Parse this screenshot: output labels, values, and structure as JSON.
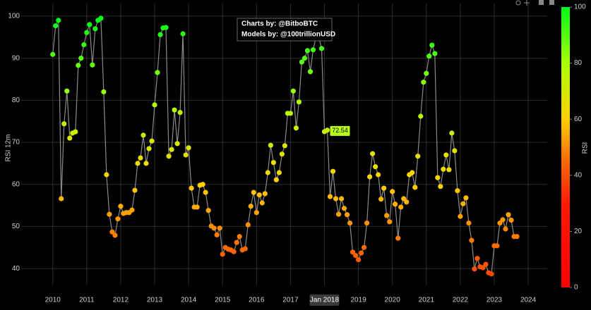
{
  "chart_data": {
    "type": "scatter",
    "y_label": "RSI 12m",
    "annotations": [
      "Charts by: @BitboBTC",
      "Models by: @100trillionUSD"
    ],
    "hover_label": "Jan 2018",
    "x": [
      2010,
      2010.083,
      2010.167,
      2010.25,
      2010.333,
      2010.417,
      2010.5,
      2010.583,
      2010.667,
      2010.75,
      2010.833,
      2010.917,
      2011,
      2011.083,
      2011.167,
      2011.25,
      2011.333,
      2011.417,
      2011.5,
      2011.583,
      2011.667,
      2011.75,
      2011.833,
      2011.917,
      2012,
      2012.083,
      2012.167,
      2012.25,
      2012.333,
      2012.417,
      2012.5,
      2012.583,
      2012.667,
      2012.75,
      2012.833,
      2012.917,
      2013,
      2013.083,
      2013.167,
      2013.25,
      2013.333,
      2013.417,
      2013.5,
      2013.583,
      2013.667,
      2013.75,
      2013.833,
      2013.917,
      2014,
      2014.083,
      2014.167,
      2014.25,
      2014.333,
      2014.417,
      2014.5,
      2014.583,
      2014.667,
      2014.75,
      2014.833,
      2014.917,
      2015,
      2015.083,
      2015.167,
      2015.25,
      2015.333,
      2015.417,
      2015.5,
      2015.583,
      2015.667,
      2015.75,
      2015.833,
      2015.917,
      2016,
      2016.083,
      2016.167,
      2016.25,
      2016.333,
      2016.417,
      2016.5,
      2016.583,
      2016.667,
      2016.75,
      2016.833,
      2016.917,
      2017,
      2017.083,
      2017.167,
      2017.25,
      2017.333,
      2017.417,
      2017.5,
      2017.583,
      2017.667,
      2017.75,
      2017.833,
      2017.917,
      2018,
      2018.083,
      2018.167,
      2018.25,
      2018.333,
      2018.417,
      2018.5,
      2018.583,
      2018.667,
      2018.75,
      2018.833,
      2018.917,
      2019,
      2019.083,
      2019.167,
      2019.25,
      2019.333,
      2019.417,
      2019.5,
      2019.583,
      2019.667,
      2019.75,
      2019.833,
      2019.917,
      2020,
      2020.083,
      2020.167,
      2020.25,
      2020.333,
      2020.417,
      2020.5,
      2020.583,
      2020.667,
      2020.75,
      2020.833,
      2020.917,
      2021,
      2021.083,
      2021.167,
      2021.25,
      2021.333,
      2021.417,
      2021.5,
      2021.583,
      2021.667,
      2021.75,
      2021.833,
      2021.917,
      2022,
      2022.083,
      2022.167,
      2022.25,
      2022.333,
      2022.417,
      2022.5,
      2022.583,
      2022.667,
      2022.75,
      2022.833,
      2022.917,
      2023,
      2023.083,
      2023.167,
      2023.25,
      2023.333,
      2023.417,
      2023.5,
      2023.583,
      2023.667
    ],
    "values": [
      90.9,
      97.7,
      99,
      56.6,
      74.4,
      82.2,
      71,
      72.2,
      72.5,
      88.3,
      90,
      93.2,
      96.1,
      98,
      88.4,
      97,
      99,
      99.5,
      82,
      62.3,
      52.9,
      48.7,
      47.9,
      51.8,
      54.8,
      53.1,
      53.3,
      53.3,
      53.9,
      58.6,
      65,
      66.3,
      71.7,
      65,
      68.5,
      70.3,
      78.9,
      86.6,
      95.6,
      97.2,
      97.3,
      66.7,
      68.3,
      77.7,
      69.7,
      77.1,
      95.8,
      67,
      68.7,
      59.1,
      54.6,
      54.6,
      59.8,
      60,
      58.1,
      53.8,
      50.1,
      49.6,
      48,
      49.6,
      43.4,
      45,
      44.6,
      44.4,
      44,
      46.2,
      47.6,
      44.4,
      44.7,
      50.4,
      54.8,
      58.1,
      53.3,
      57.5,
      55.6,
      57.8,
      62.8,
      69.3,
      65.2,
      61.1,
      62.8,
      67.2,
      69.2,
      76.9,
      76.9,
      82.2,
      73.4,
      79.6,
      89.1,
      90,
      91.8,
      86.8,
      92,
      95,
      95,
      92.3,
      72.54,
      72.9,
      57.1,
      63.1,
      56.6,
      52.9,
      56.6,
      54.3,
      52.8,
      50.8,
      43.9,
      43.1,
      42.1,
      43.7,
      45,
      50.8,
      61.8,
      67.3,
      64.2,
      62.3,
      56.5,
      59.1,
      52.6,
      51.1,
      58.3,
      55.3,
      47.2,
      54.6,
      56.6,
      55.8,
      62.3,
      62.8,
      59.3,
      66.7,
      76.2,
      84.3,
      86.4,
      90.5,
      93.1,
      91.1,
      61.6,
      59.5,
      63.6,
      67,
      63.5,
      72.2,
      68,
      58.5,
      52.4,
      55.4,
      56.8,
      50.8,
      46.7,
      39.9,
      42.4,
      40.4,
      40.2,
      41,
      39,
      38.7,
      45.4,
      45.4,
      50.8,
      51.6,
      49.4,
      52.8,
      51.5,
      47.6,
      47.6
    ],
    "line_color": "#8a8a8a",
    "xlim": [
      2009.07,
      2024.56
    ],
    "xticks": [
      2010,
      2011,
      2012,
      2013,
      2014,
      2015,
      2016,
      2017,
      2018,
      2019,
      2020,
      2021,
      2022,
      2023,
      2024
    ],
    "ylim": [
      36,
      103
    ],
    "yticks": [
      40,
      50,
      60,
      70,
      80,
      90,
      100
    ],
    "grid": true,
    "colorscale": [
      [
        0,
        "#ff0000"
      ],
      [
        30,
        "#ff1a00"
      ],
      [
        45,
        "#ff6a00"
      ],
      [
        60,
        "#ffd000"
      ],
      [
        80,
        "#aaff00"
      ],
      [
        100,
        "#00ff1a"
      ]
    ],
    "colorbar": {
      "title": "RSI",
      "lim": [
        0,
        100
      ],
      "ticks": [
        0,
        20,
        40,
        60,
        80,
        100
      ]
    }
  }
}
